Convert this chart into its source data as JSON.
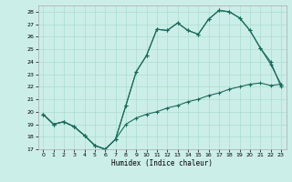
{
  "xlabel": "Humidex (Indice chaleur)",
  "bg_color": "#cceee8",
  "line_color": "#1a6b5a",
  "grid_color": "#aaddcc",
  "xlim": [
    -0.5,
    23.5
  ],
  "ylim": [
    17,
    28.5
  ],
  "yticks": [
    17,
    18,
    19,
    20,
    21,
    22,
    23,
    24,
    25,
    26,
    27,
    28
  ],
  "xticks": [
    0,
    1,
    2,
    3,
    4,
    5,
    6,
    7,
    8,
    9,
    10,
    11,
    12,
    13,
    14,
    15,
    16,
    17,
    18,
    19,
    20,
    21,
    22,
    23
  ],
  "series1_x": [
    0,
    1,
    2,
    3,
    4,
    5,
    6,
    7,
    8,
    9,
    10,
    11,
    12,
    13,
    14,
    15,
    16,
    17,
    18,
    19,
    20,
    21,
    22,
    23
  ],
  "series1_y": [
    19.8,
    19.0,
    19.2,
    18.8,
    18.1,
    17.3,
    17.0,
    17.8,
    19.0,
    19.5,
    19.8,
    20.0,
    20.3,
    20.5,
    20.8,
    21.0,
    21.3,
    21.5,
    21.8,
    22.0,
    22.2,
    22.3,
    22.1,
    22.2
  ],
  "series2_x": [
    0,
    1,
    2,
    3,
    4,
    5,
    6,
    7,
    8,
    9,
    10,
    11,
    12,
    13,
    14,
    15,
    16,
    17,
    18,
    19,
    20,
    21,
    22,
    23
  ],
  "series2_y": [
    19.8,
    19.0,
    19.2,
    18.8,
    18.1,
    17.3,
    17.0,
    17.8,
    20.5,
    23.2,
    24.5,
    26.6,
    26.5,
    27.1,
    26.5,
    26.2,
    27.4,
    28.1,
    28.0,
    27.5,
    26.5,
    25.1,
    24.0,
    22.0
  ],
  "series3_x": [
    0,
    1,
    2,
    3,
    4,
    5,
    6,
    7,
    8,
    9,
    10,
    11,
    12,
    13,
    14,
    15,
    16,
    17,
    18,
    19,
    20,
    21,
    22,
    23
  ],
  "series3_y": [
    19.8,
    19.0,
    19.2,
    18.8,
    18.1,
    17.3,
    17.0,
    17.8,
    20.5,
    23.2,
    24.5,
    26.6,
    26.5,
    27.1,
    26.5,
    26.2,
    27.4,
    28.1,
    28.0,
    27.5,
    26.5,
    25.1,
    23.8,
    22.2
  ]
}
